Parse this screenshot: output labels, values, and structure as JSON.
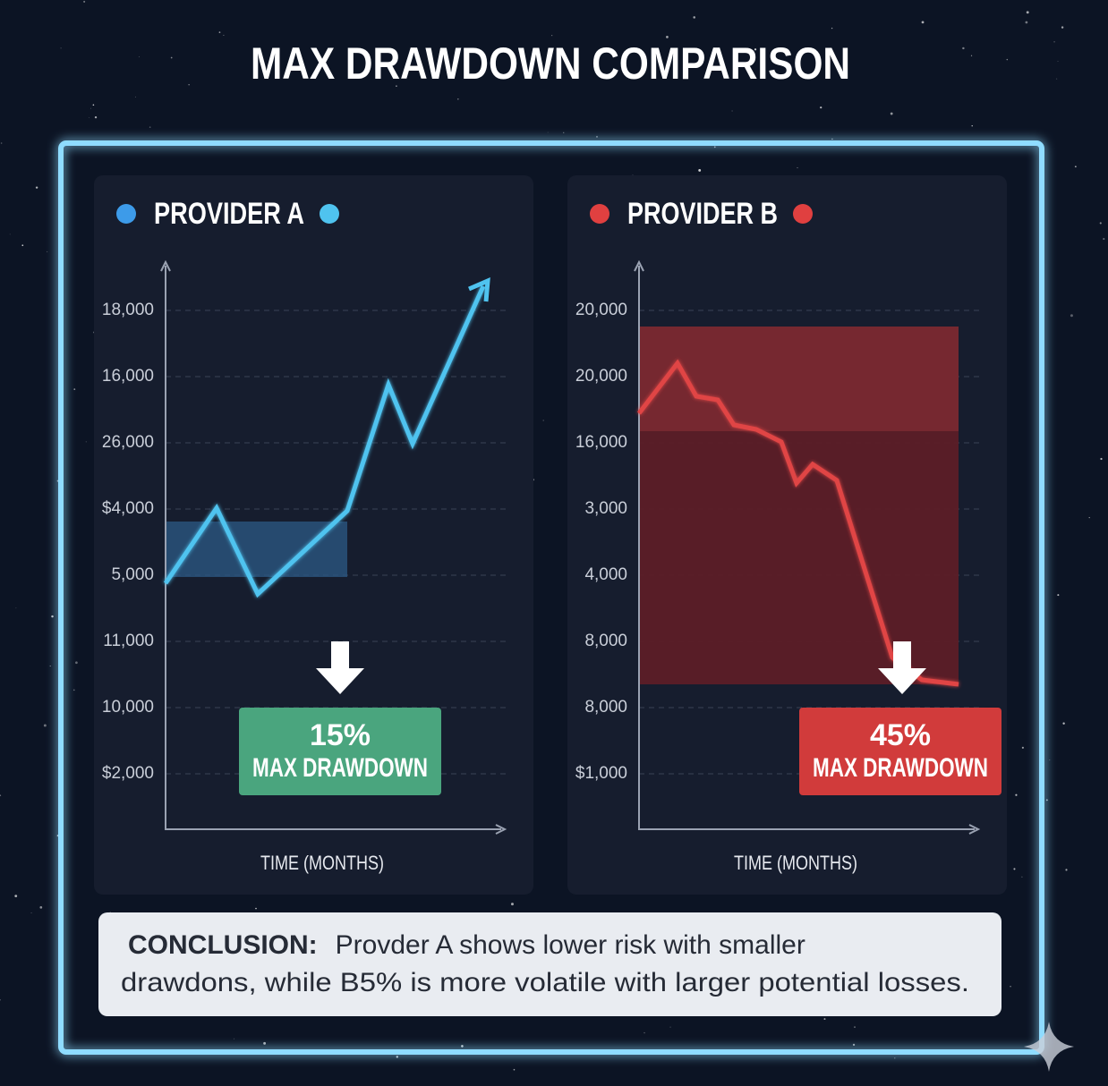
{
  "title": "MAX DRAWDOWN COMPARISON",
  "panels": [
    {
      "title": "PROVIDER A",
      "y_labels": [
        "18,000",
        "16,000",
        "26,000",
        "$4,000",
        "5,000",
        "11,000",
        "10,000",
        "$2,000"
      ],
      "badge_value": "15%",
      "badge_label": "MAX DRAWDOWN",
      "x_label": "TIME (MONTHS)"
    },
    {
      "title": "PROVIDER B",
      "y_labels": [
        "20,000",
        "20,000",
        "16,000",
        "3,000",
        "4,000",
        "8,000",
        "8,000",
        "$1,000"
      ],
      "badge_value": "45%",
      "badge_label": "MAX DRAWDOWN",
      "x_label": "TIME (MONTHS)"
    }
  ],
  "conclusion": {
    "label": "CONCLUSION:",
    "line1": "Provder A shows lower risk with smaller",
    "line2": "drawdons, while B5% is more volatile with larger potential losses."
  }
}
